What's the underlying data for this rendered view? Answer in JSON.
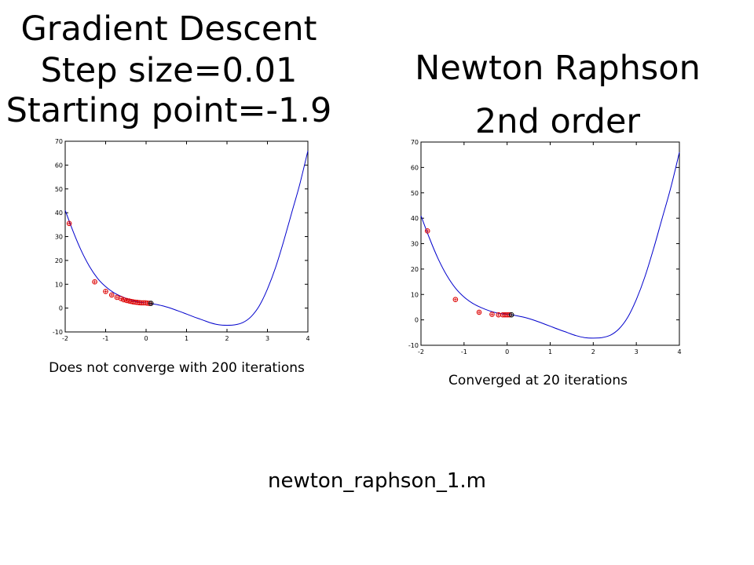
{
  "left_title": {
    "line1": "Gradient Descent",
    "line2": "Step size=0.01",
    "line3": "Starting point=-1.9"
  },
  "right_title": {
    "line1": "Newton Raphson",
    "line2": "2nd order"
  },
  "left_caption": "Does not converge with 200 iterations",
  "right_caption": "Converged at 20 iterations",
  "filename": "newton_raphson_1.m",
  "colors": {
    "curve": "#0000cc",
    "markers": "#dd0000",
    "final_marker": "#000000"
  },
  "chart_data": [
    {
      "type": "line",
      "xlim": [
        -2,
        4
      ],
      "ylim": [
        -10,
        70
      ],
      "xticks": [
        -2,
        -1,
        0,
        1,
        2,
        3,
        4
      ],
      "yticks": [
        -10,
        0,
        10,
        20,
        30,
        40,
        50,
        60,
        70
      ],
      "grid": false,
      "curve": {
        "x": [
          -2,
          -1.8,
          -1.6,
          -1.4,
          -1.2,
          -1,
          -0.8,
          -0.6,
          -0.4,
          -0.2,
          0,
          0.2,
          0.4,
          0.6,
          0.8,
          1,
          1.2,
          1.4,
          1.6,
          1.8,
          2,
          2.2,
          2.4,
          2.6,
          2.8,
          3,
          3.2,
          3.4,
          3.6,
          3.8,
          4
        ],
        "y": [
          41,
          32,
          24,
          17.5,
          12.5,
          9,
          6.5,
          4.8,
          3.5,
          2.6,
          2.2,
          1.7,
          1,
          0,
          -1.2,
          -2.5,
          -3.8,
          -5,
          -6.2,
          -7,
          -7.2,
          -7,
          -6,
          -3.5,
          1,
          8,
          17,
          28,
          40,
          52,
          66
        ]
      },
      "iterates": {
        "x": [
          -1.9,
          -1.27,
          -1.0,
          -0.85,
          -0.72,
          -0.62,
          -0.55,
          -0.48,
          -0.42,
          -0.37,
          -0.32,
          -0.27,
          -0.22,
          -0.17,
          -0.12,
          -0.07,
          -0.02,
          0.03,
          0.08,
          0.12
        ],
        "y": [
          35.5,
          11,
          7,
          5.5,
          4.5,
          4.0,
          3.5,
          3.2,
          3.0,
          2.8,
          2.6,
          2.5,
          2.4,
          2.3,
          2.2,
          2.2,
          2.2,
          2.1,
          2.0,
          2.0
        ]
      }
    },
    {
      "type": "line",
      "xlim": [
        -2,
        4
      ],
      "ylim": [
        -10,
        70
      ],
      "xticks": [
        -2,
        -1,
        0,
        1,
        2,
        3,
        4
      ],
      "yticks": [
        -10,
        0,
        10,
        20,
        30,
        40,
        50,
        60,
        70
      ],
      "grid": false,
      "curve": {
        "x": [
          -2,
          -1.8,
          -1.6,
          -1.4,
          -1.2,
          -1,
          -0.8,
          -0.6,
          -0.4,
          -0.2,
          0,
          0.2,
          0.4,
          0.6,
          0.8,
          1,
          1.2,
          1.4,
          1.6,
          1.8,
          2,
          2.2,
          2.4,
          2.6,
          2.8,
          3,
          3.2,
          3.4,
          3.6,
          3.8,
          4
        ],
        "y": [
          41,
          32,
          24,
          17.5,
          12.5,
          9,
          6.5,
          4.8,
          3.5,
          2.6,
          2.2,
          1.7,
          1,
          0,
          -1.2,
          -2.5,
          -3.8,
          -5,
          -6.2,
          -7,
          -7.2,
          -7,
          -6,
          -3.5,
          1,
          8,
          17,
          28,
          40,
          52,
          66
        ]
      },
      "iterates": {
        "x": [
          -1.85,
          -1.2,
          -0.65,
          -0.35,
          -0.2,
          -0.1,
          -0.05,
          0,
          0.05,
          0.1
        ],
        "y": [
          35,
          8,
          3,
          2.2,
          2,
          2,
          2,
          2,
          2,
          2
        ]
      }
    }
  ]
}
